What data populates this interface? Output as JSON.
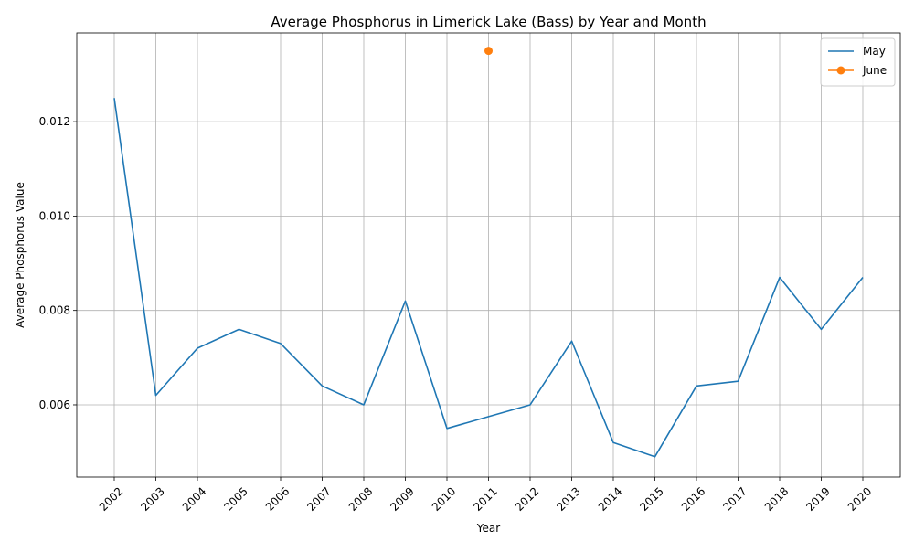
{
  "chart_data": {
    "type": "line",
    "title": "Average Phosphorus in Limerick Lake (Bass) by Year and Month",
    "xlabel": "Year",
    "ylabel": "Average Phosphorus Value",
    "categories": [
      "2002",
      "2003",
      "2004",
      "2005",
      "2006",
      "2007",
      "2008",
      "2009",
      "2010",
      "2011",
      "2012",
      "2013",
      "2014",
      "2015",
      "2016",
      "2017",
      "2018",
      "2019",
      "2020"
    ],
    "series": [
      {
        "name": "May",
        "color": "#1f77b4",
        "marker": "none",
        "values": [
          0.0125,
          0.0062,
          0.0072,
          0.0076,
          0.0073,
          0.0064,
          0.006,
          0.0082,
          0.0055,
          0.00575,
          0.006,
          0.00735,
          0.0052,
          0.0049,
          0.0064,
          0.0065,
          0.0087,
          0.0076,
          0.0087
        ]
      },
      {
        "name": "June",
        "color": "#ff7f0e",
        "marker": "circle",
        "values": [
          null,
          null,
          null,
          null,
          null,
          null,
          null,
          null,
          null,
          0.0135,
          null,
          null,
          null,
          null,
          null,
          null,
          null,
          null,
          null
        ]
      }
    ],
    "yticks": [
      0.006,
      0.008,
      0.01,
      0.012
    ],
    "ytick_labels": [
      "0.006",
      "0.008",
      "0.010",
      "0.012"
    ],
    "ylim": [
      0.00447,
      0.01388
    ],
    "grid": true,
    "legend_position": "top-right"
  }
}
